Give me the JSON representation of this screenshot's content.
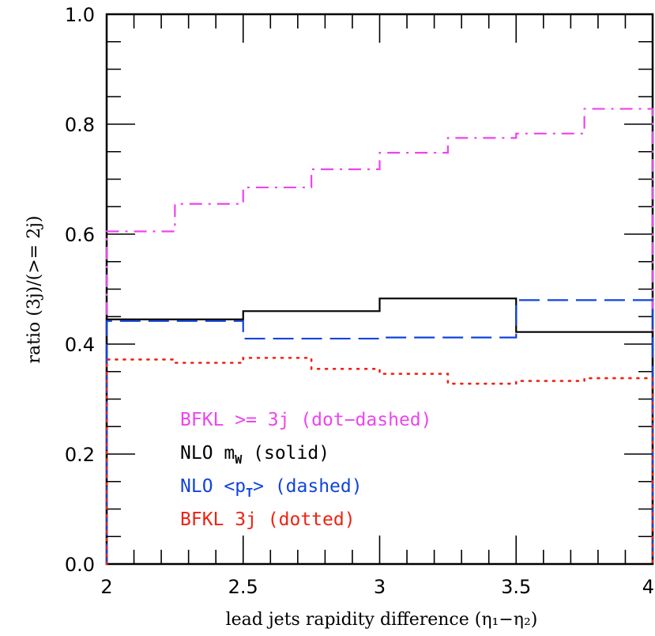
{
  "chart_data": {
    "type": "line",
    "xlabel": "lead jets rapidity difference (η₁−η₂)",
    "ylabel": "ratio (3j)/(>= 2j)",
    "xlim": [
      2,
      4
    ],
    "ylim": [
      0,
      1.0
    ],
    "x_ticks": [
      "2",
      "2.5",
      "3",
      "3.5",
      "4"
    ],
    "y_ticks": [
      "0.0",
      "0.2",
      "0.4",
      "0.6",
      "0.8",
      "1.0"
    ],
    "grid": false,
    "legend_placement": "bottom-left",
    "series": [
      {
        "name": "BFKL >= 3j (dot−dashed)",
        "style": "dashdot",
        "color": "#ee44ee",
        "edges": [
          2,
          2.25,
          2.5,
          2.75,
          3,
          3.25,
          3.5,
          3.75,
          4
        ],
        "values": [
          0.605,
          0.655,
          0.685,
          0.718,
          0.748,
          0.775,
          0.783,
          0.828
        ]
      },
      {
        "name": "NLO m_W (solid)",
        "style": "solid",
        "color": "#000000",
        "edges": [
          2,
          2.5,
          3,
          3.5,
          4
        ],
        "values": [
          0.445,
          0.46,
          0.483,
          0.422
        ]
      },
      {
        "name": "NLO <p_T> (dashed)",
        "style": "dashed",
        "color": "#1144dd",
        "edges": [
          2,
          2.5,
          3,
          3.5,
          4
        ],
        "values": [
          0.442,
          0.41,
          0.412,
          0.48
        ]
      },
      {
        "name": "BFKL 3j (dotted)",
        "style": "dotted",
        "color": "#ee2211",
        "edges": [
          2,
          2.25,
          2.5,
          2.75,
          3,
          3.25,
          3.5,
          3.75,
          4
        ],
        "values": [
          0.372,
          0.366,
          0.375,
          0.355,
          0.346,
          0.328,
          0.333,
          0.338
        ]
      }
    ],
    "legend": [
      {
        "prefix": "BFKL >= 3j (dot−dashed)",
        "sub": "",
        "suffix": "",
        "color": "#ee44ee"
      },
      {
        "prefix": "NLO m",
        "sub": "W",
        "suffix": " (solid)",
        "color": "#000000"
      },
      {
        "prefix": "NLO <p",
        "sub": "T",
        "suffix": "> (dashed)",
        "color": "#1144dd"
      },
      {
        "prefix": "BFKL 3j (dotted)",
        "sub": "",
        "suffix": "",
        "color": "#ee2211"
      }
    ]
  }
}
